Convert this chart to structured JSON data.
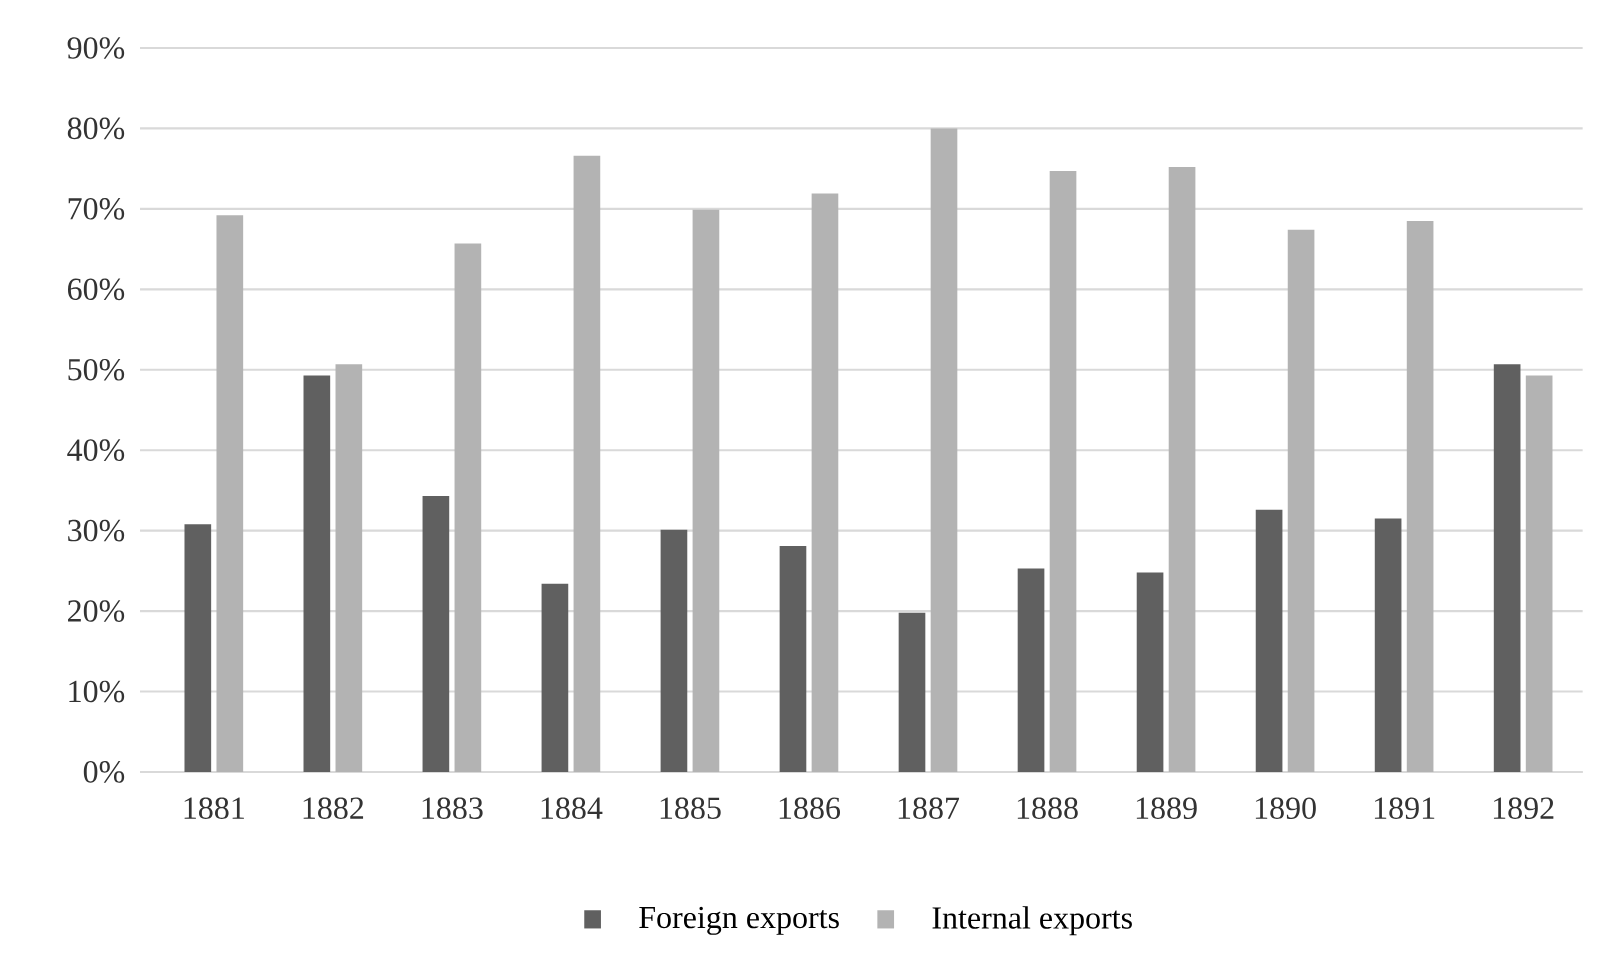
{
  "chart_data": {
    "type": "bar",
    "categories": [
      "1881",
      "1882",
      "1883",
      "1884",
      "1885",
      "1886",
      "1887",
      "1888",
      "1889",
      "1890",
      "1891",
      "1892"
    ],
    "series": [
      {
        "name": "Foreign exports",
        "color": "#606060",
        "values": [
          30.8,
          49.3,
          34.3,
          23.4,
          30.1,
          28.1,
          19.8,
          25.3,
          24.8,
          32.6,
          31.5,
          50.7
        ]
      },
      {
        "name": "Internal exports",
        "color": "#b3b3b3",
        "values": [
          69.2,
          50.7,
          65.7,
          76.6,
          69.9,
          71.9,
          80.0,
          74.7,
          75.2,
          67.4,
          68.5,
          49.3
        ]
      }
    ],
    "ylim": [
      0,
      90
    ],
    "yticks": [
      {
        "value": 0,
        "label": "0%"
      },
      {
        "value": 10,
        "label": "10%"
      },
      {
        "value": 20,
        "label": "20%"
      },
      {
        "value": 30,
        "label": "30%"
      },
      {
        "value": 40,
        "label": "40%"
      },
      {
        "value": 50,
        "label": "50%"
      },
      {
        "value": 60,
        "label": "60%"
      },
      {
        "value": 70,
        "label": "70%"
      },
      {
        "value": 80,
        "label": "80%"
      },
      {
        "value": 90,
        "label": "90%"
      }
    ],
    "grid": "y",
    "legend": "bottom"
  }
}
